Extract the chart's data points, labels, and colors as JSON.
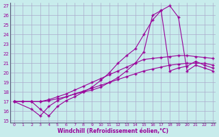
{
  "xlabel": "Windchill (Refroidissement éolien,°C)",
  "background_color": "#c8ecec",
  "grid_color": "#aaaacc",
  "line_color": "#990099",
  "xlim": [
    -0.5,
    23.3
  ],
  "ylim": [
    14.8,
    27.3
  ],
  "xticks": [
    0,
    1,
    2,
    3,
    4,
    5,
    6,
    7,
    8,
    9,
    10,
    11,
    12,
    13,
    14,
    15,
    16,
    17,
    18,
    19,
    20,
    21,
    22,
    23
  ],
  "yticks": [
    15,
    16,
    17,
    18,
    19,
    20,
    21,
    22,
    23,
    24,
    25,
    26,
    27
  ],
  "series1_x": [
    0,
    1,
    2,
    3,
    4,
    5,
    6,
    7,
    8,
    9,
    10,
    11,
    12,
    13,
    14,
    15,
    16,
    17,
    18,
    19,
    20,
    21,
    22,
    23
  ],
  "series1_y": [
    17.0,
    17.0,
    17.0,
    17.0,
    17.1,
    17.3,
    17.5,
    17.8,
    18.1,
    18.4,
    18.7,
    19.0,
    19.3,
    19.6,
    19.9,
    20.2,
    20.4,
    20.6,
    20.8,
    20.9,
    21.0,
    21.0,
    21.0,
    20.8
  ],
  "series2_x": [
    0,
    1,
    2,
    3,
    4,
    5,
    6,
    7,
    8,
    9,
    10,
    11,
    12,
    13,
    14,
    15,
    16,
    17,
    18,
    19,
    20,
    21,
    22,
    23
  ],
  "series2_y": [
    17.0,
    17.0,
    17.0,
    17.0,
    17.2,
    17.5,
    17.8,
    18.2,
    18.6,
    19.0,
    19.4,
    19.8,
    20.2,
    20.6,
    21.0,
    21.4,
    21.5,
    21.6,
    21.7,
    21.8,
    21.8,
    21.7,
    21.6,
    21.5
  ],
  "series3_x": [
    0,
    2,
    3,
    4,
    5,
    6,
    7,
    8,
    9,
    10,
    11,
    12,
    13,
    14,
    15,
    16,
    17,
    18,
    19,
    20,
    21,
    22,
    23
  ],
  "series3_y": [
    17.0,
    17.0,
    16.2,
    15.5,
    16.5,
    17.1,
    17.5,
    18.0,
    18.5,
    19.2,
    20.0,
    21.0,
    21.8,
    22.5,
    24.0,
    25.5,
    26.5,
    27.0,
    25.8,
    20.2,
    20.8,
    20.5,
    20.2
  ],
  "series4_x": [
    0,
    2,
    3,
    4,
    5,
    6,
    7,
    8,
    9,
    10,
    11,
    12,
    13,
    14,
    15,
    16,
    17,
    18,
    19,
    20,
    21,
    22,
    23
  ],
  "series4_y": [
    17.0,
    16.2,
    15.5,
    16.5,
    17.1,
    17.5,
    17.8,
    18.0,
    18.2,
    18.5,
    19.0,
    19.5,
    20.2,
    21.0,
    22.2,
    26.0,
    26.5,
    20.2,
    20.5,
    20.7,
    21.2,
    20.8,
    20.5
  ],
  "marker": "+",
  "markersize": 3,
  "linewidth": 0.8
}
